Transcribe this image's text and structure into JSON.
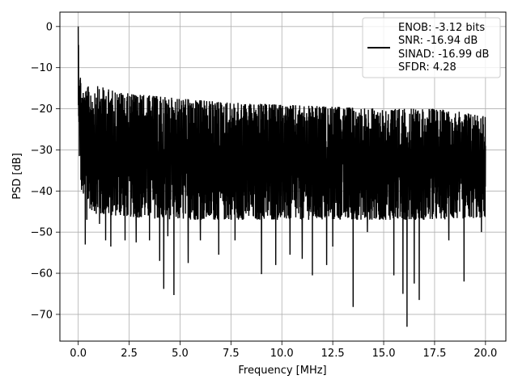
{
  "chart_data": {
    "type": "line",
    "title": "",
    "xlabel": "Frequency [MHz]",
    "ylabel": "PSD [dB]",
    "xlim": [
      -0.9,
      21.0
    ],
    "ylim": [
      -76.5,
      3.5
    ],
    "x_ticks": [
      {
        "value": 0.0,
        "label": "0.0"
      },
      {
        "value": 2.5,
        "label": "2.5"
      },
      {
        "value": 5.0,
        "label": "5.0"
      },
      {
        "value": 7.5,
        "label": "7.5"
      },
      {
        "value": 10.0,
        "label": "10.0"
      },
      {
        "value": 12.5,
        "label": "12.5"
      },
      {
        "value": 15.0,
        "label": "15.0"
      },
      {
        "value": 17.5,
        "label": "17.5"
      },
      {
        "value": 20.0,
        "label": "20.0"
      }
    ],
    "y_ticks": [
      {
        "value": 0,
        "label": "0"
      },
      {
        "value": -10,
        "label": "−10"
      },
      {
        "value": -20,
        "label": "−20"
      },
      {
        "value": -30,
        "label": "−30"
      },
      {
        "value": -40,
        "label": "−40"
      },
      {
        "value": -50,
        "label": "−50"
      },
      {
        "value": -60,
        "label": "−60"
      },
      {
        "value": -70,
        "label": "−70"
      }
    ],
    "grid": true,
    "legend_position": "top-right",
    "legend_lines": [
      "ENOB: -3.12 bits",
      "SNR: -16.94 dB",
      "SINAD: -16.99 dB",
      "SFDR: 4.28"
    ],
    "series": [
      {
        "color": "#000000",
        "x_start": 0.0,
        "x_end": 20.0,
        "envelope": {
          "x": [
            0.0,
            0.05,
            0.15,
            0.3,
            0.5,
            1.0,
            2.0,
            3.0,
            5.0,
            7.5,
            10.0,
            12.5,
            15.0,
            17.5,
            20.0
          ],
          "upper": [
            0.0,
            -8.0,
            -14.0,
            -16.0,
            -14.5,
            -14.5,
            -16.0,
            -16.5,
            -17.5,
            -18.5,
            -19.0,
            -19.5,
            -20.0,
            -20.0,
            -21.5
          ],
          "lower": [
            -25.0,
            -32.0,
            -40.0,
            -42.0,
            -44.0,
            -46.0,
            -46.0,
            -46.5,
            -47.0,
            -47.0,
            -47.0,
            -47.0,
            -47.0,
            -47.0,
            -46.5
          ]
        },
        "deep_dips": [
          {
            "x": 0.35,
            "y": -53.0
          },
          {
            "x": 0.42,
            "y": -47.0
          },
          {
            "x": 1.05,
            "y": -48.0
          },
          {
            "x": 1.35,
            "y": -52.0
          },
          {
            "x": 1.6,
            "y": -53.5
          },
          {
            "x": 2.3,
            "y": -52.0
          },
          {
            "x": 2.85,
            "y": -52.5
          },
          {
            "x": 3.5,
            "y": -52.0
          },
          {
            "x": 4.0,
            "y": -57.0
          },
          {
            "x": 4.2,
            "y": -63.8
          },
          {
            "x": 4.4,
            "y": -51.0
          },
          {
            "x": 4.7,
            "y": -65.3
          },
          {
            "x": 5.4,
            "y": -57.5
          },
          {
            "x": 6.0,
            "y": -52.0
          },
          {
            "x": 6.9,
            "y": -55.5
          },
          {
            "x": 7.7,
            "y": -52.0
          },
          {
            "x": 9.0,
            "y": -60.2
          },
          {
            "x": 9.7,
            "y": -58.0
          },
          {
            "x": 10.4,
            "y": -55.5
          },
          {
            "x": 11.0,
            "y": -56.5
          },
          {
            "x": 11.5,
            "y": -60.5
          },
          {
            "x": 12.2,
            "y": -58.0
          },
          {
            "x": 12.5,
            "y": -53.5
          },
          {
            "x": 13.5,
            "y": -68.2
          },
          {
            "x": 14.2,
            "y": -50.0
          },
          {
            "x": 15.5,
            "y": -60.5
          },
          {
            "x": 15.95,
            "y": -65.0
          },
          {
            "x": 16.15,
            "y": -73.0
          },
          {
            "x": 16.5,
            "y": -62.5
          },
          {
            "x": 16.75,
            "y": -66.5
          },
          {
            "x": 18.2,
            "y": -52.0
          },
          {
            "x": 18.95,
            "y": -62.0
          },
          {
            "x": 19.8,
            "y": -50.0
          }
        ]
      }
    ]
  }
}
